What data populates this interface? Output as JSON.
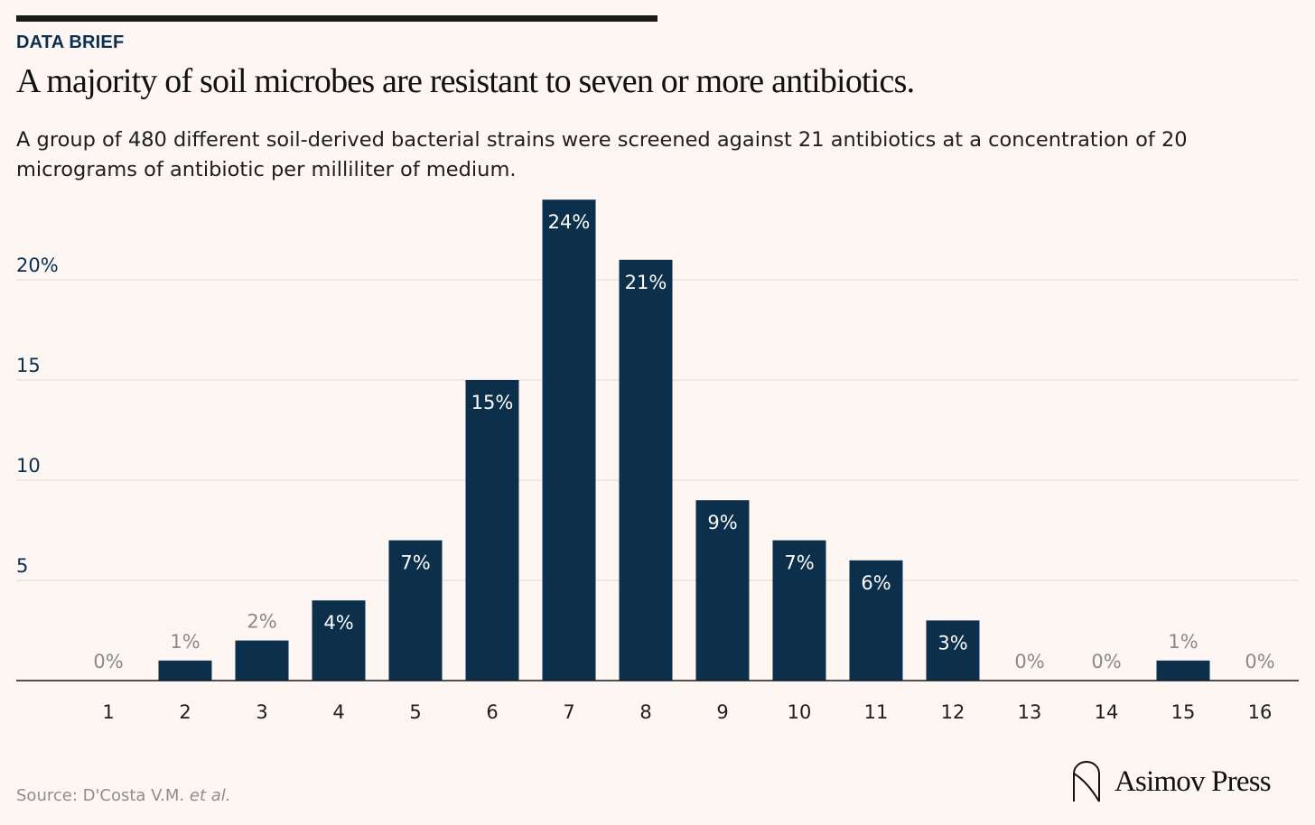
{
  "header": {
    "kicker": "DATA BRIEF",
    "title": "A majority of soil microbes are resistant to seven or more antibiotics.",
    "subtitle": "A group of 480 different soil-derived bacterial strains were screened against 21 antibiotics at a concentration of 20 micrograms of antibiotic per milliliter of medium."
  },
  "footer": {
    "source_prefix": "Source: D'Costa V.M. ",
    "source_italic": "et al.",
    "brand": "Asimov Press"
  },
  "colors": {
    "background": "#fdf6f2",
    "bar": "#0c2f4b",
    "label_inside": "#ffffff",
    "label_outside": "#8a8a8a",
    "tick_label": "#0c2f4e",
    "gridline": "#dddad7"
  },
  "chart_data": {
    "type": "bar",
    "title": "A majority of soil microbes are resistant to seven or more antibiotics.",
    "xlabel": "",
    "ylabel": "",
    "categories": [
      "1",
      "2",
      "3",
      "4",
      "5",
      "6",
      "7",
      "8",
      "9",
      "10",
      "11",
      "12",
      "13",
      "14",
      "15",
      "16"
    ],
    "values": [
      0,
      1,
      2,
      4,
      7,
      15,
      24,
      21,
      9,
      7,
      6,
      3,
      0,
      0,
      1,
      0
    ],
    "data_labels": [
      "0%",
      "1%",
      "2%",
      "4%",
      "7%",
      "15%",
      "24%",
      "21%",
      "9%",
      "7%",
      "6%",
      "3%",
      "0%",
      "0%",
      "1%",
      "0%"
    ],
    "ylim": [
      0,
      24
    ],
    "yticks": [
      5,
      10,
      15,
      20
    ],
    "ytick_labels": [
      "5",
      "10",
      "15",
      "20%"
    ],
    "grid": true
  }
}
